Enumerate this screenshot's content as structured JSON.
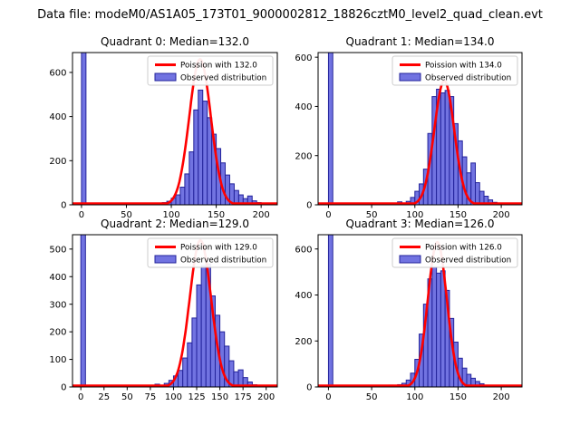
{
  "figure": {
    "suptitle": "Data file: modeM0/AS1A05_173T01_9000002812_18826cztM0_level2_quad_clean.evt",
    "background": "#ffffff"
  },
  "style": {
    "bar_fill": "#7173e1",
    "bar_edge": "#23239b",
    "curve_color": "#ff0000",
    "axis_color": "#000000",
    "legend_border": "#cccccc",
    "legend_background": "#ffffff",
    "text_color": "#000000"
  },
  "chart_data": [
    {
      "type": "bar",
      "subtype": "histogram-with-fit-line",
      "quadrant": 0,
      "title": "Quadrant 0: Median=132.0",
      "median": 132.0,
      "xlabel": "",
      "ylabel": "",
      "legend": [
        "Poission with 132.0",
        "Observed distribution"
      ],
      "legend_position": "upper right",
      "xlim": [
        -10,
        218
      ],
      "ylim": [
        0,
        690
      ],
      "xticks": [
        0,
        50,
        100,
        150,
        200
      ],
      "yticks": [
        0,
        200,
        400,
        600
      ],
      "bin_width": 5,
      "zero_bin": {
        "x": 0,
        "clipped_at_top": true
      },
      "bins": [
        [
          75,
          4
        ],
        [
          80,
          7
        ],
        [
          85,
          5
        ],
        [
          90,
          10
        ],
        [
          95,
          16
        ],
        [
          100,
          30
        ],
        [
          105,
          45
        ],
        [
          110,
          80
        ],
        [
          115,
          140
        ],
        [
          120,
          240
        ],
        [
          125,
          430
        ],
        [
          130,
          520
        ],
        [
          135,
          470
        ],
        [
          140,
          395
        ],
        [
          145,
          320
        ],
        [
          150,
          255
        ],
        [
          155,
          190
        ],
        [
          160,
          135
        ],
        [
          165,
          95
        ],
        [
          170,
          65
        ],
        [
          175,
          45
        ],
        [
          180,
          28
        ],
        [
          185,
          40
        ],
        [
          190,
          18
        ],
        [
          195,
          10
        ],
        [
          200,
          6
        ],
        [
          205,
          3
        ]
      ],
      "poisson_curve": {
        "mu": 132.0,
        "sigma": 12.0,
        "peak": 660
      }
    },
    {
      "type": "bar",
      "subtype": "histogram-with-fit-line",
      "quadrant": 1,
      "title": "Quadrant 1: Median=134.0",
      "median": 134.0,
      "xlabel": "",
      "ylabel": "",
      "legend": [
        "Poission with 134.0",
        "Observed distribution"
      ],
      "legend_position": "upper right",
      "xlim": [
        -12,
        224
      ],
      "ylim": [
        0,
        619
      ],
      "xticks": [
        0,
        50,
        100,
        150,
        200
      ],
      "yticks": [
        0,
        200,
        400,
        600
      ],
      "bin_width": 5,
      "zero_bin": {
        "x": 0,
        "clipped_at_top": true
      },
      "bins": [
        [
          75,
          4
        ],
        [
          80,
          12
        ],
        [
          85,
          6
        ],
        [
          90,
          14
        ],
        [
          95,
          30
        ],
        [
          100,
          55
        ],
        [
          105,
          85
        ],
        [
          110,
          145
        ],
        [
          115,
          290
        ],
        [
          120,
          440
        ],
        [
          125,
          470
        ],
        [
          130,
          455
        ],
        [
          135,
          465
        ],
        [
          140,
          440
        ],
        [
          145,
          330
        ],
        [
          150,
          260
        ],
        [
          155,
          195
        ],
        [
          160,
          130
        ],
        [
          165,
          170
        ],
        [
          170,
          90
        ],
        [
          175,
          55
        ],
        [
          180,
          35
        ],
        [
          185,
          20
        ],
        [
          190,
          10
        ],
        [
          195,
          5
        ]
      ],
      "poisson_curve": {
        "mu": 134.0,
        "sigma": 11.5,
        "peak": 505
      }
    },
    {
      "type": "bar",
      "subtype": "histogram-with-fit-line",
      "quadrant": 2,
      "title": "Quadrant 2: Median=129.0",
      "median": 129.0,
      "xlabel": "",
      "ylabel": "",
      "legend": [
        "Poission with 129.0",
        "Observed distribution"
      ],
      "legend_position": "upper right",
      "xlim": [
        -9,
        212
      ],
      "ylim": [
        0,
        552
      ],
      "xticks": [
        0,
        25,
        50,
        75,
        100,
        125,
        150,
        175,
        200
      ],
      "yticks": [
        0,
        100,
        200,
        300,
        400,
        500
      ],
      "bin_width": 5,
      "zero_bin": {
        "x": 0,
        "clipped_at_top": true
      },
      "bins": [
        [
          60,
          4
        ],
        [
          75,
          6
        ],
        [
          80,
          10
        ],
        [
          85,
          6
        ],
        [
          90,
          13
        ],
        [
          95,
          24
        ],
        [
          100,
          40
        ],
        [
          105,
          60
        ],
        [
          110,
          105
        ],
        [
          115,
          160
        ],
        [
          120,
          250
        ],
        [
          125,
          370
        ],
        [
          130,
          440
        ],
        [
          135,
          445
        ],
        [
          140,
          330
        ],
        [
          145,
          260
        ],
        [
          150,
          200
        ],
        [
          155,
          148
        ],
        [
          160,
          95
        ],
        [
          165,
          55
        ],
        [
          170,
          62
        ],
        [
          175,
          34
        ],
        [
          180,
          18
        ],
        [
          185,
          8
        ],
        [
          190,
          4
        ]
      ],
      "poisson_curve": {
        "mu": 129.0,
        "sigma": 11.5,
        "peak": 532
      }
    },
    {
      "type": "bar",
      "subtype": "histogram-with-fit-line",
      "quadrant": 3,
      "title": "Quadrant 3: Median=126.0",
      "median": 126.0,
      "xlabel": "",
      "ylabel": "",
      "legend": [
        "Poission with 126.0",
        "Observed distribution"
      ],
      "legend_position": "upper right",
      "xlim": [
        -12,
        224
      ],
      "ylim": [
        0,
        662
      ],
      "xticks": [
        0,
        50,
        100,
        150,
        200
      ],
      "yticks": [
        0,
        200,
        400,
        600
      ],
      "bin_width": 5,
      "zero_bin": {
        "x": 0,
        "clipped_at_top": true
      },
      "bins": [
        [
          70,
          8
        ],
        [
          75,
          4
        ],
        [
          80,
          10
        ],
        [
          85,
          16
        ],
        [
          90,
          30
        ],
        [
          95,
          60
        ],
        [
          100,
          120
        ],
        [
          105,
          230
        ],
        [
          110,
          360
        ],
        [
          115,
          470
        ],
        [
          120,
          520
        ],
        [
          125,
          495
        ],
        [
          130,
          505
        ],
        [
          135,
          420
        ],
        [
          140,
          298
        ],
        [
          145,
          195
        ],
        [
          150,
          125
        ],
        [
          155,
          82
        ],
        [
          160,
          55
        ],
        [
          165,
          38
        ],
        [
          170,
          24
        ],
        [
          175,
          14
        ],
        [
          180,
          8
        ]
      ],
      "poisson_curve": {
        "mu": 126.0,
        "sigma": 11.0,
        "peak": 630
      }
    }
  ]
}
